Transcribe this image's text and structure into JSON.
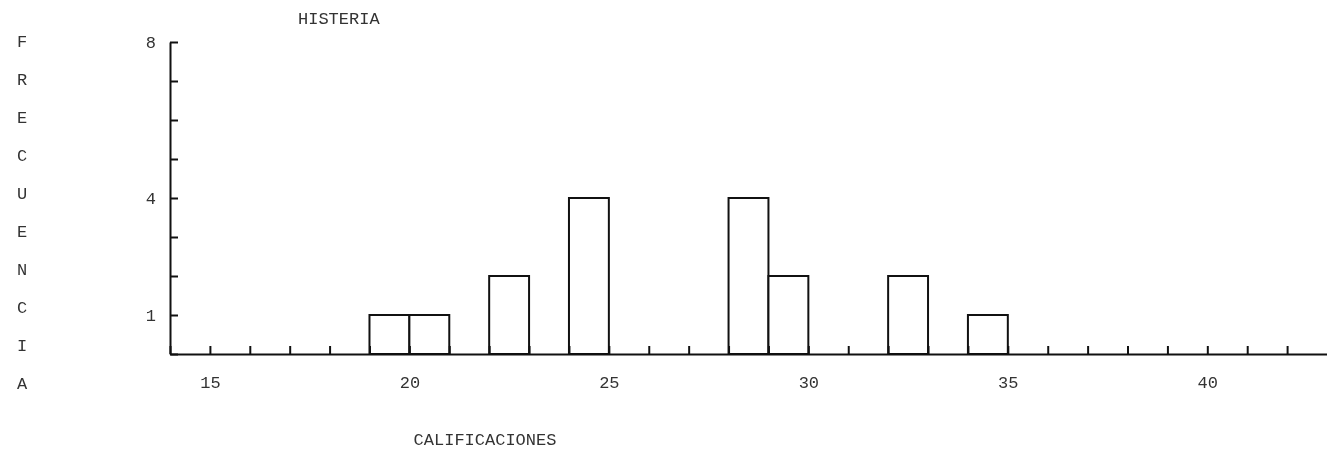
{
  "chart_data": {
    "type": "histogram",
    "title": "HISTERIA",
    "xlabel": "CALIFICACIONES",
    "ylabel": "FRECUENCIA",
    "bins": [
      19,
      20,
      21,
      22,
      23,
      24,
      25,
      26,
      27,
      28,
      29,
      30,
      31,
      32,
      33,
      34,
      35
    ],
    "values": [
      1,
      1,
      0,
      2,
      0,
      4,
      0,
      0,
      0,
      4,
      2,
      0,
      0,
      2,
      0,
      1
    ],
    "color": "#ffffff",
    "xlim": [
      14,
      43
    ],
    "xticks": [
      {
        "value": 14,
        "label": null
      },
      15,
      {
        "value": 16,
        "label": null
      },
      {
        "value": 17,
        "label": null
      },
      {
        "value": 18,
        "label": null
      },
      {
        "value": 19,
        "label": null
      },
      20,
      {
        "value": 21,
        "label": null
      },
      {
        "value": 22,
        "label": null
      },
      {
        "value": 23,
        "label": null
      },
      {
        "value": 24,
        "label": null
      },
      25,
      {
        "value": 26,
        "label": null
      },
      {
        "value": 27,
        "label": null
      },
      {
        "value": 28,
        "label": null
      },
      {
        "value": 29,
        "label": null
      },
      30,
      {
        "value": 31,
        "label": null
      },
      {
        "value": 32,
        "label": null
      },
      {
        "value": 33,
        "label": null
      },
      {
        "value": 34,
        "label": null
      },
      35,
      {
        "value": 36,
        "label": null
      },
      {
        "value": 37,
        "label": null
      },
      {
        "value": 38,
        "label": null
      },
      {
        "value": 39,
        "label": null
      },
      40,
      {
        "value": 41,
        "label": null
      },
      {
        "value": 42,
        "label": null
      }
    ],
    "ylim": [
      0,
      8
    ],
    "yticks": [
      {
        "value": 0,
        "label": null
      },
      1,
      {
        "value": 2,
        "label": null
      },
      {
        "value": 3,
        "label": null
      },
      4,
      {
        "value": 5,
        "label": null
      },
      {
        "value": 6,
        "label": null
      },
      {
        "value": 7,
        "label": null
      },
      8
    ]
  }
}
